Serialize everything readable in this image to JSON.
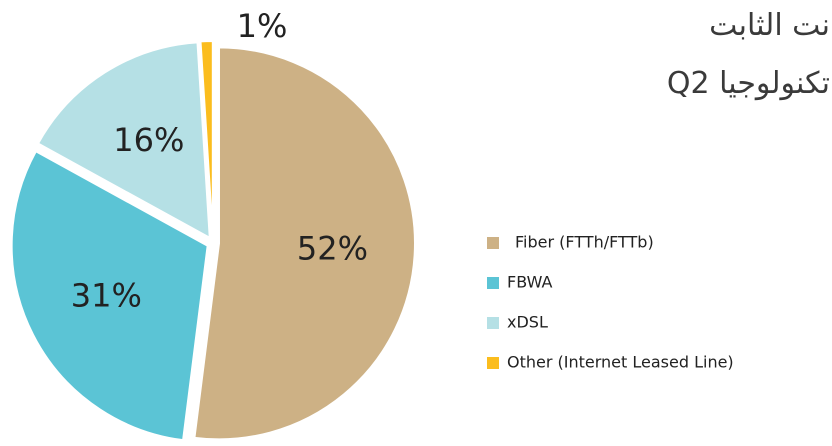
{
  "chart_data": {
    "type": "pie",
    "title": "نت الثابت",
    "subtitle": "تكنولوجيا Q2",
    "categories": [
      "Fiber (FTTh/FTTb)",
      "FBWA",
      "xDSL",
      "Other (Internet Leased Line)"
    ],
    "values": [
      52,
      31,
      16,
      1
    ],
    "value_labels": [
      "52%",
      "31%",
      "16%",
      "1%"
    ],
    "colors": [
      "#cdb185",
      "#5bc4d5",
      "#b5e0e5",
      "#fbbd1e"
    ],
    "legend": "right"
  }
}
